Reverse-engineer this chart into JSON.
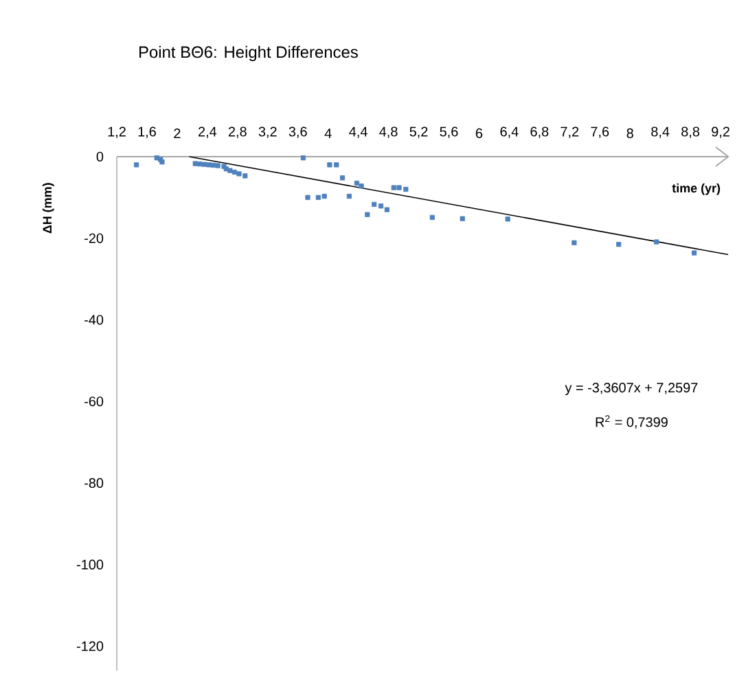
{
  "chart_data": {
    "type": "scatter",
    "title": "Point BΘ6: Height Differences",
    "xlabel": "time (yr)",
    "ylabel": "ΔH (mm)",
    "xlim": [
      1.2,
      9.3
    ],
    "ylim": [
      -126,
      0
    ],
    "xticks": [
      {
        "value": 1.2,
        "label": "1,2"
      },
      {
        "value": 1.6,
        "label": "1,6"
      },
      2,
      {
        "value": 2.4,
        "label": "2,4"
      },
      {
        "value": 2.8,
        "label": "2,8"
      },
      {
        "value": 3.2,
        "label": "3,2"
      },
      {
        "value": 3.6,
        "label": "3,6"
      },
      4,
      {
        "value": 4.4,
        "label": "4,4"
      },
      {
        "value": 4.8,
        "label": "4,8"
      },
      {
        "value": 5.2,
        "label": "5,2"
      },
      {
        "value": 5.6,
        "label": "5,6"
      },
      6,
      {
        "value": 6.4,
        "label": "6,4"
      },
      {
        "value": 6.8,
        "label": "6,8"
      },
      {
        "value": 7.2,
        "label": "7,2"
      },
      {
        "value": 7.6,
        "label": "7,6"
      },
      8,
      {
        "value": 8.4,
        "label": "8,4"
      },
      {
        "value": 8.8,
        "label": "8,8"
      },
      {
        "value": 9.2,
        "label": "9,2"
      }
    ],
    "yticks": [
      0,
      -20,
      -40,
      -60,
      -80,
      -100,
      -120
    ],
    "grid": false,
    "series": [
      {
        "marker": "square",
        "color": "#4f81bd",
        "x": [
          1.46,
          1.73,
          1.78,
          1.8,
          2.24,
          2.3,
          2.36,
          2.42,
          2.48,
          2.54,
          2.62,
          2.65,
          2.7,
          2.76,
          2.82,
          2.9,
          3.67,
          4.02,
          4.11,
          4.19,
          4.38,
          4.44,
          4.28,
          3.73,
          3.87,
          3.95,
          4.61,
          4.7,
          4.78,
          4.52,
          4.87,
          4.94,
          5.03,
          5.38,
          5.78,
          6.38,
          7.26,
          7.85,
          8.35,
          8.85
        ],
        "values": [
          -2.0,
          -0.3,
          -0.7,
          -1.3,
          -1.7,
          -1.8,
          -1.9,
          -2.0,
          -2.1,
          -2.2,
          -2.4,
          -3.0,
          -3.4,
          -3.8,
          -4.2,
          -4.7,
          -0.3,
          -2.0,
          -2.0,
          -5.2,
          -6.5,
          -7.2,
          -9.7,
          -10.0,
          -10.0,
          -9.7,
          -11.7,
          -12.1,
          -13.0,
          -14.2,
          -7.6,
          -7.6,
          -8.0,
          -14.9,
          -15.2,
          -15.3,
          -21.1,
          -21.5,
          -20.9,
          -23.6
        ]
      },
      {
        "type": "line",
        "marker": "none",
        "color": "#000000",
        "x": [
          2.16,
          9.3
        ],
        "values": [
          0,
          -24.0
        ]
      }
    ],
    "annotations": [
      "y = -3,3607x + 7,2597",
      "R$^{2}$ = 0,7399"
    ]
  }
}
